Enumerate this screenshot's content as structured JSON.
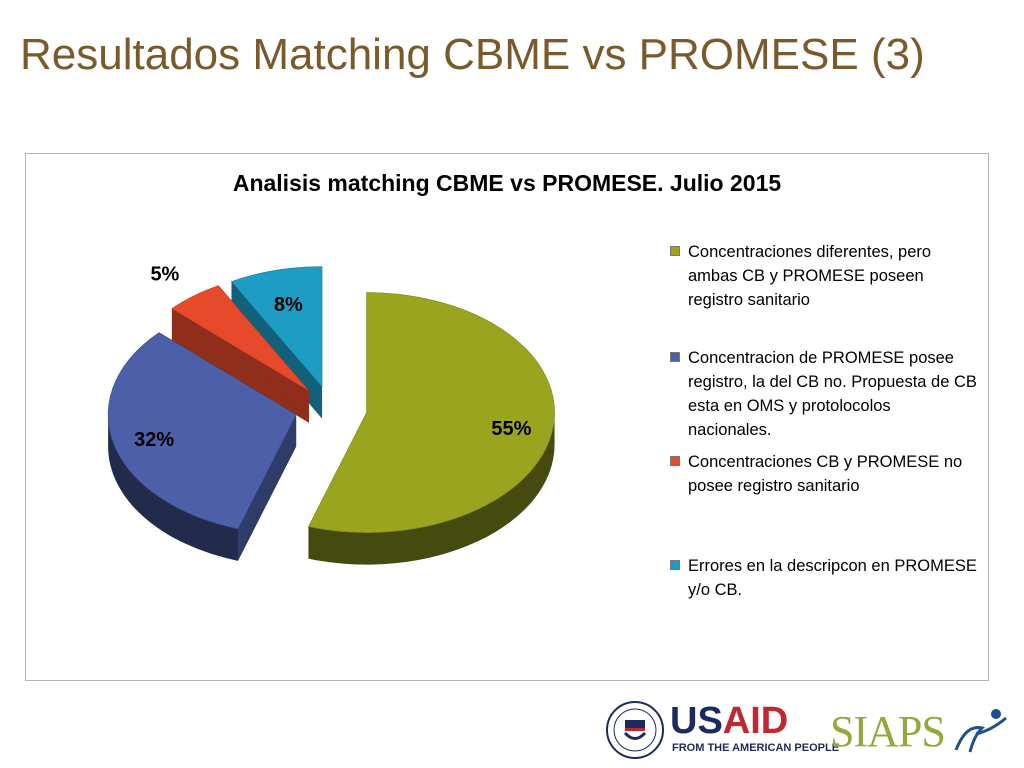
{
  "slide": {
    "title": "Resultados Matching CBME vs PROMESE (3)"
  },
  "chart_data": {
    "type": "pie",
    "title": "Analisis matching CBME vs PROMESE. Julio 2015",
    "legend_position": "right",
    "slices": [
      {
        "label": "Concentraciones diferentes, pero ambas CB y PROMESE poseen registro sanitario",
        "value": 55,
        "display": "55%",
        "color": "#9aa41e",
        "exploded": true
      },
      {
        "label": "Concentracion de PROMESE posee registro, la del CB no. Propuesta de CB esta en OMS y protolocolos nacionales.",
        "value": 32,
        "display": "32%",
        "color": "#4c5fa8",
        "exploded": true
      },
      {
        "label": "Concentraciones CB y PROMESE no posee registro sanitario",
        "value": 5,
        "display": "5%",
        "color": "#e64a2b",
        "exploded": true
      },
      {
        "label": "Errores en la descripcon en PROMESE y/o CB.",
        "value": 8,
        "display": "8%",
        "color": "#1d9cc4",
        "exploded": true
      }
    ]
  },
  "footer": {
    "usaid_word": "USAID",
    "usaid_tagline": "FROM THE AMERICAN PEOPLE",
    "siaps_word": "SIAPS",
    "usaid_red": "#c1272d",
    "usaid_blue": "#1d2a5e"
  }
}
